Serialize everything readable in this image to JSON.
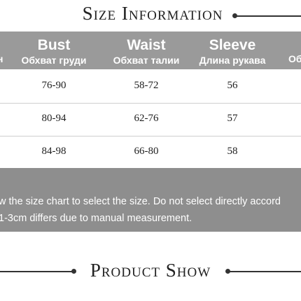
{
  "header": {
    "title": "Size Information"
  },
  "table": {
    "left_partial_header": "н",
    "columns": [
      {
        "title": "Bust",
        "subtitle": "Обхват груди"
      },
      {
        "title": "Waist",
        "subtitle": "Обхват талии"
      },
      {
        "title": "Sleeve",
        "subtitle": "Длина рукава"
      }
    ],
    "right_partial_header": "Обхв",
    "rows": [
      [
        "76-90",
        "58-72",
        "56"
      ],
      [
        "80-94",
        "62-76",
        "57"
      ],
      [
        "84-98",
        "66-80",
        "58"
      ]
    ]
  },
  "notes": [
    "w the size chart to select the size. Do not select directly accord",
    "1-3cm differs due to manual measurement."
  ],
  "footer": {
    "title": "Product Show"
  }
}
